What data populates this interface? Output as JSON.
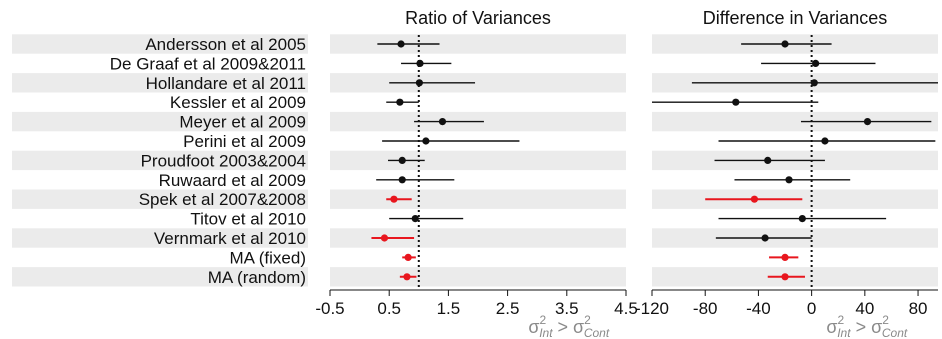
{
  "colors": {
    "stripe": "#ebebeb",
    "normal": "#111111",
    "highlight": "#e8161e",
    "secondary": "#8a8a8a"
  },
  "studies": [
    "Andersson et al 2005",
    "De Graaf et al 2009&2011",
    "Hollandare et al 2011",
    "Kessler et al 2009",
    "Meyer et al 2009",
    "Perini et al 2009",
    "Proudfoot 2003&2004",
    "Ruwaard et al 2009",
    "Spek et al 2007&2008",
    "Titov et al 2010",
    "Vernmark et al 2010",
    "MA (fixed)",
    "MA (random)"
  ],
  "chart_data": [
    {
      "type": "forest",
      "title": "Ratio of Variances",
      "xlabel_main": "σ",
      "xlabel_sup": "2",
      "xlabel_sub": "Int",
      "xlabel_op": " > ",
      "xlabel_main2": "σ",
      "xlabel_sup2": "2",
      "xlabel_sub2": "Cont",
      "xlim": [
        -0.5,
        4.5
      ],
      "ticks": [
        -0.5,
        0.5,
        1.5,
        2.5,
        3.5,
        4.5
      ],
      "tick_labels": [
        "-0.5",
        "0.5",
        "1.5",
        "2.5",
        "3.5",
        "4.5"
      ],
      "reference": 1,
      "rows": [
        {
          "est": 0.7,
          "lo": 0.3,
          "hi": 1.35,
          "highlight": false
        },
        {
          "est": 1.02,
          "lo": 0.7,
          "hi": 1.55,
          "highlight": false
        },
        {
          "est": 1.01,
          "lo": 0.5,
          "hi": 1.95,
          "highlight": false
        },
        {
          "est": 0.68,
          "lo": 0.45,
          "hi": 1.0,
          "highlight": false
        },
        {
          "est": 1.4,
          "lo": 0.92,
          "hi": 2.1,
          "highlight": false
        },
        {
          "est": 1.12,
          "lo": 0.38,
          "hi": 2.7,
          "highlight": false
        },
        {
          "est": 0.72,
          "lo": 0.48,
          "hi": 1.1,
          "highlight": false
        },
        {
          "est": 0.72,
          "lo": 0.28,
          "hi": 1.6,
          "highlight": false
        },
        {
          "est": 0.58,
          "lo": 0.45,
          "hi": 0.88,
          "highlight": true
        },
        {
          "est": 0.94,
          "lo": 0.5,
          "hi": 1.75,
          "highlight": false
        },
        {
          "est": 0.42,
          "lo": 0.2,
          "hi": 0.92,
          "highlight": true
        },
        {
          "est": 0.82,
          "lo": 0.72,
          "hi": 0.95,
          "highlight": true
        },
        {
          "est": 0.8,
          "lo": 0.68,
          "hi": 0.96,
          "highlight": true
        }
      ]
    },
    {
      "type": "forest",
      "title": "Difference in Variances",
      "xlabel_main": "σ",
      "xlabel_sup": "2",
      "xlabel_sub": "Int",
      "xlabel_op": " > ",
      "xlabel_main2": "σ",
      "xlabel_sup2": "2",
      "xlabel_sub2": "Cont",
      "xlim": [
        -120,
        95
      ],
      "ticks": [
        -120,
        -80,
        -40,
        0,
        40,
        80
      ],
      "tick_labels": [
        "-120",
        "-80",
        "-40",
        "0",
        "40",
        "80"
      ],
      "reference": 0,
      "rows": [
        {
          "est": -20,
          "lo": -53,
          "hi": 15,
          "highlight": false
        },
        {
          "est": 3,
          "lo": -38,
          "hi": 48,
          "highlight": false
        },
        {
          "est": 2,
          "lo": -90,
          "hi": 95,
          "highlight": false
        },
        {
          "est": -57,
          "lo": -120,
          "hi": 5,
          "highlight": false
        },
        {
          "est": 42,
          "lo": -8,
          "hi": 90,
          "highlight": false
        },
        {
          "est": 10,
          "lo": -70,
          "hi": 93,
          "highlight": false
        },
        {
          "est": -33,
          "lo": -73,
          "hi": 10,
          "highlight": false
        },
        {
          "est": -17,
          "lo": -58,
          "hi": 29,
          "highlight": false
        },
        {
          "est": -43,
          "lo": -80,
          "hi": -7,
          "highlight": true
        },
        {
          "est": -7,
          "lo": -70,
          "hi": 56,
          "highlight": false
        },
        {
          "est": -35,
          "lo": -72,
          "hi": 0,
          "highlight": false
        },
        {
          "est": -20,
          "lo": -32,
          "hi": -10,
          "highlight": true
        },
        {
          "est": -20,
          "lo": -33,
          "hi": -5,
          "highlight": true
        }
      ]
    }
  ]
}
